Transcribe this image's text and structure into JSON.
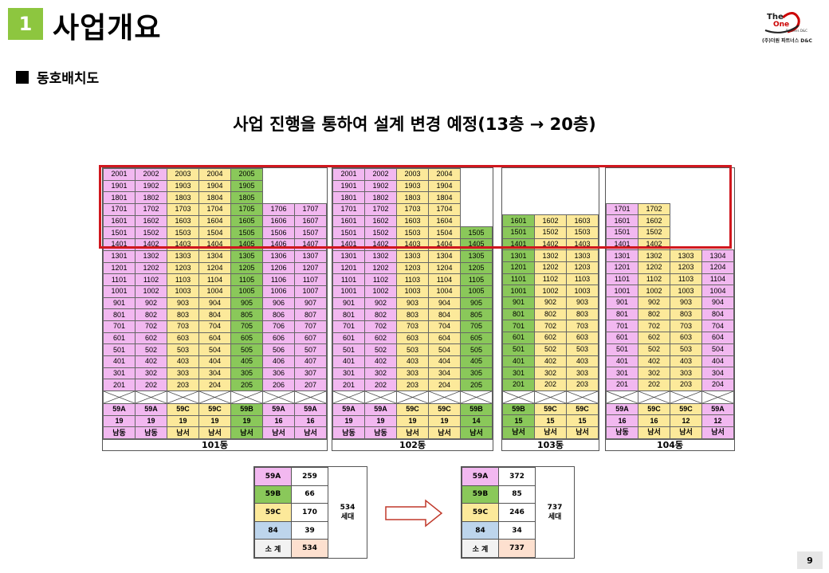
{
  "header": {
    "number": "1",
    "title": "사업개요"
  },
  "logo": {
    "line1": "The",
    "line2": "One",
    "line3": "Partners D&C",
    "company": "(주)더원 파트너스 D&C"
  },
  "section": {
    "label": "동호배치도"
  },
  "subtitle": "사업 진행을 통하여 설계 변경 예정(13층 → 20층)",
  "colors": {
    "59A": "#f2b8f0",
    "59B": "#8ac85a",
    "59C": "#fce99a",
    "84": "#bdd5ec",
    "total_label": "#f2f2f2",
    "total_value": "#fde0cf",
    "highlight_border": "#d0171e"
  },
  "buildings": [
    {
      "name": "101동",
      "columns": [
        {
          "top": 20,
          "type": "59A",
          "households": "19",
          "direction": "남동"
        },
        {
          "top": 20,
          "type": "59A",
          "households": "19",
          "direction": "남동"
        },
        {
          "top": 20,
          "type": "59C",
          "households": "19",
          "direction": "남서"
        },
        {
          "top": 20,
          "type": "59C",
          "households": "19",
          "direction": "남서"
        },
        {
          "top": 20,
          "type": "59B",
          "households": "19",
          "direction": "남서"
        },
        {
          "top": 17,
          "type": "59A",
          "households": "16",
          "direction": "남서"
        },
        {
          "top": 17,
          "type": "59A",
          "households": "16",
          "direction": "남서"
        }
      ]
    },
    {
      "name": "102동",
      "columns": [
        {
          "top": 20,
          "type": "59A",
          "households": "19",
          "direction": "남동"
        },
        {
          "top": 20,
          "type": "59A",
          "households": "19",
          "direction": "남동"
        },
        {
          "top": 20,
          "type": "59C",
          "households": "19",
          "direction": "남서"
        },
        {
          "top": 20,
          "type": "59C",
          "households": "19",
          "direction": "남서"
        },
        {
          "top": 15,
          "type": "59B",
          "households": "14",
          "direction": "남서"
        }
      ]
    },
    {
      "name": "103동",
      "columns": [
        {
          "top": 16,
          "type": "59B",
          "households": "15",
          "direction": "남서"
        },
        {
          "top": 16,
          "type": "59C",
          "households": "15",
          "direction": "남서"
        },
        {
          "top": 16,
          "type": "59C",
          "households": "15",
          "direction": "남서"
        }
      ]
    },
    {
      "name": "104동",
      "columns": [
        {
          "top": 17,
          "type": "59A",
          "households": "16",
          "direction": "남동"
        },
        {
          "top": 17,
          "type": "59C",
          "households": "16",
          "direction": "남서"
        },
        {
          "top": 13,
          "type": "59C",
          "households": "12",
          "direction": "남서"
        },
        {
          "top": 13,
          "type": "59A",
          "households": "12",
          "direction": "남서"
        }
      ]
    }
  ],
  "summary_before": {
    "rows": [
      {
        "type": "59A",
        "count": "259"
      },
      {
        "type": "59B",
        "count": "66"
      },
      {
        "type": "59C",
        "count": "170"
      },
      {
        "type": "84",
        "count": "39"
      }
    ],
    "total_label": "소 계",
    "total": "534",
    "households_total": "534",
    "households_unit": "세대"
  },
  "summary_after": {
    "rows": [
      {
        "type": "59A",
        "count": "372"
      },
      {
        "type": "59B",
        "count": "85"
      },
      {
        "type": "59C",
        "count": "246"
      },
      {
        "type": "84",
        "count": "34"
      }
    ],
    "total_label": "소 계",
    "total": "737",
    "households_total": "737",
    "households_unit": "세대"
  },
  "page_number": "9"
}
